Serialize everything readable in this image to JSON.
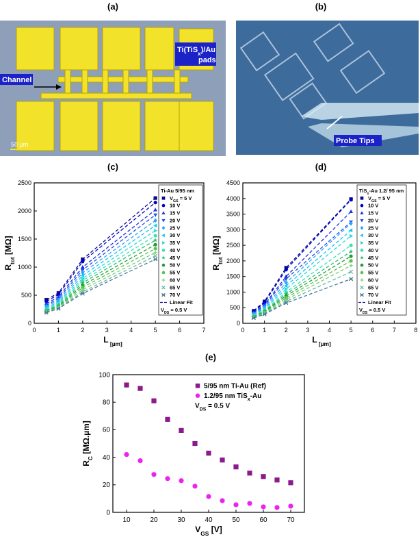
{
  "images": {
    "a": {
      "panel": "(a)",
      "channel": "Channel",
      "pads": [
        [
          "Ti(TiS",
          "x",
          ")/Au"
        ],
        [
          "pads"
        ]
      ],
      "scale": "50 µm"
    },
    "b": {
      "panel": "(b)",
      "probes": "Probe Tips"
    }
  },
  "chart_data": [
    {
      "type": "scatter",
      "panel": "(c)",
      "x": [
        0.5,
        1,
        2,
        5
      ],
      "xlim": [
        0,
        7
      ],
      "xticks": [
        0,
        1,
        2,
        3,
        4,
        5,
        6,
        7
      ],
      "ylim": [
        0,
        2500
      ],
      "yticks": [
        0,
        500,
        1000,
        1500,
        2000,
        2500
      ],
      "xlabel": [
        "L",
        " [µm]"
      ],
      "ylabel": [
        "R",
        "tot",
        " [MΩ]"
      ],
      "line": "dashed",
      "legend_title": [
        "Ti-Au 5/95 nm"
      ],
      "fit_label": "Linear Fit",
      "note": [
        "V",
        "DS",
        " = 0.5 V"
      ],
      "legend_box": true,
      "series": [
        {
          "name": [
            "V",
            "GS",
            " = 5 V"
          ],
          "color": "#0a0a8c",
          "marker": "square",
          "values": [
            420,
            540,
            1140,
            2230
          ]
        },
        {
          "name": [
            "10 V"
          ],
          "color": "#0000c8",
          "marker": "circle",
          "values": [
            390,
            510,
            1100,
            2150
          ]
        },
        {
          "name": [
            "15 V"
          ],
          "color": "#1a2ee0",
          "marker": "triangle-up",
          "values": [
            350,
            470,
            1000,
            2020
          ]
        },
        {
          "name": [
            "20 V"
          ],
          "color": "#1e50e6",
          "marker": "triangle-down",
          "values": [
            320,
            440,
            950,
            1930
          ]
        },
        {
          "name": [
            "25 V"
          ],
          "color": "#30a0ff",
          "marker": "diamond",
          "values": [
            300,
            410,
            900,
            1830
          ]
        },
        {
          "name": [
            "30 V"
          ],
          "color": "#10c8f0",
          "marker": "triangle-left",
          "values": [
            280,
            380,
            850,
            1740
          ]
        },
        {
          "name": [
            "35 V"
          ],
          "color": "#28d8e0",
          "marker": "triangle-right",
          "values": [
            260,
            360,
            800,
            1650
          ]
        },
        {
          "name": [
            "40 V"
          ],
          "color": "#40e0b0",
          "marker": "circle",
          "values": [
            240,
            340,
            760,
            1560
          ]
        },
        {
          "name": [
            "45 V"
          ],
          "color": "#20c070",
          "marker": "star",
          "values": [
            230,
            320,
            720,
            1480
          ]
        },
        {
          "name": [
            "50 V"
          ],
          "color": "#2a9a3a",
          "marker": "circle",
          "values": [
            220,
            300,
            680,
            1400
          ]
        },
        {
          "name": [
            "55 V"
          ],
          "color": "#50c850",
          "marker": "circle",
          "values": [
            210,
            290,
            640,
            1330
          ]
        },
        {
          "name": [
            "60 V"
          ],
          "color": "#80cc70",
          "marker": "plus",
          "values": [
            200,
            280,
            600,
            1260
          ]
        },
        {
          "name": [
            "65 V"
          ],
          "color": "#60b8a8",
          "marker": "cross",
          "values": [
            195,
            270,
            560,
            1200
          ]
        },
        {
          "name": [
            "70 V"
          ],
          "color": "#4a7a98",
          "marker": "asterisk",
          "values": [
            190,
            260,
            530,
            1140
          ]
        }
      ]
    },
    {
      "type": "scatter",
      "panel": "(d)",
      "x": [
        0.5,
        1,
        2,
        5
      ],
      "xlim": [
        0,
        8
      ],
      "xticks": [
        0,
        1,
        2,
        3,
        4,
        5,
        6,
        7,
        8
      ],
      "ylim": [
        0,
        4500
      ],
      "yticks": [
        0,
        500,
        1000,
        1500,
        2000,
        2500,
        3000,
        3500,
        4000,
        4500
      ],
      "xlabel": [
        "L",
        " [µm]"
      ],
      "ylabel": [
        "R",
        "tot",
        " [MΩ]"
      ],
      "line": "dashed",
      "legend_title": [
        "TiS",
        "x",
        "-Au 1.2/ 95 nm"
      ],
      "fit_label": "Linear Fit",
      "note": [
        "V",
        "DS",
        " = 0.5 V"
      ],
      "legend_box": true,
      "series": [
        {
          "name": [
            "V",
            "GS",
            " = 5 V"
          ],
          "color": "#0a0a8c",
          "marker": "square",
          "values": [
            400,
            700,
            1780,
            3980
          ]
        },
        {
          "name": [
            "10 V"
          ],
          "color": "#0000c8",
          "marker": "circle",
          "values": [
            380,
            660,
            1720,
            3960
          ]
        },
        {
          "name": [
            "15 V"
          ],
          "color": "#1a2ee0",
          "marker": "triangle-up",
          "values": [
            350,
            600,
            1500,
            3580
          ]
        },
        {
          "name": [
            "20 V"
          ],
          "color": "#1e50e6",
          "marker": "triangle-down",
          "values": [
            320,
            560,
            1420,
            3250
          ]
        },
        {
          "name": [
            "25 V"
          ],
          "color": "#30a0ff",
          "marker": "diamond",
          "values": [
            300,
            520,
            1300,
            3200
          ]
        },
        {
          "name": [
            "30 V"
          ],
          "color": "#10c8f0",
          "marker": "triangle-left",
          "values": [
            280,
            480,
            1200,
            2980
          ]
        },
        {
          "name": [
            "35 V"
          ],
          "color": "#28d8e0",
          "marker": "triangle-right",
          "values": [
            260,
            450,
            1100,
            2800
          ]
        },
        {
          "name": [
            "40 V"
          ],
          "color": "#40e0b0",
          "marker": "circle",
          "values": [
            240,
            420,
            1000,
            2500
          ]
        },
        {
          "name": [
            "45 V"
          ],
          "color": "#20c070",
          "marker": "star",
          "values": [
            220,
            390,
            940,
            2300
          ]
        },
        {
          "name": [
            "50 V"
          ],
          "color": "#2a9a3a",
          "marker": "circle",
          "values": [
            210,
            370,
            880,
            2150
          ]
        },
        {
          "name": [
            "55 V"
          ],
          "color": "#50c850",
          "marker": "circle",
          "values": [
            200,
            350,
            820,
            2000
          ]
        },
        {
          "name": [
            "60 V"
          ],
          "color": "#80cc70",
          "marker": "plus",
          "values": [
            190,
            330,
            760,
            1850
          ]
        },
        {
          "name": [
            "65 V"
          ],
          "color": "#60b8a8",
          "marker": "cross",
          "values": [
            180,
            310,
            700,
            1650
          ]
        },
        {
          "name": [
            "70 V"
          ],
          "color": "#4a7a98",
          "marker": "asterisk",
          "values": [
            170,
            290,
            650,
            1420
          ]
        }
      ]
    },
    {
      "type": "scatter",
      "panel": "(e)",
      "x": [
        10,
        15,
        20,
        25,
        30,
        35,
        40,
        45,
        50,
        55,
        60,
        65,
        70
      ],
      "xlim": [
        5,
        75
      ],
      "xticks": [
        10,
        20,
        30,
        40,
        50,
        60,
        70
      ],
      "ylim": [
        0,
        100
      ],
      "yticks": [
        0,
        20,
        40,
        60,
        80,
        100
      ],
      "xlabel": [
        "V",
        "GS",
        " [V]"
      ],
      "ylabel": [
        "R",
        "C",
        " [MΩ.µm]"
      ],
      "note": [
        "V",
        "DS",
        " = 0.5 V"
      ],
      "legend_box": false,
      "series": [
        {
          "name": [
            "5/95 nm Ti-Au (Ref)"
          ],
          "color": "#8b1a8b",
          "marker": "square",
          "values": [
            92.5,
            90,
            81,
            67.5,
            59.5,
            50,
            43,
            38,
            33,
            28.5,
            26,
            23.5,
            21.5
          ]
        },
        {
          "name": [
            "1.2/95 nm TiS",
            "x",
            "-Au"
          ],
          "color": "#ee22ee",
          "marker": "circle",
          "values": [
            42,
            37.5,
            27.5,
            24.5,
            23,
            19,
            11.5,
            8.5,
            5.5,
            6.5,
            4,
            3.5,
            4.5
          ]
        }
      ]
    }
  ]
}
